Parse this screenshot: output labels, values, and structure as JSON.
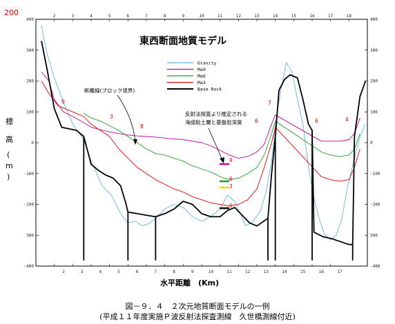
{
  "chart_data": {
    "type": "line",
    "title": "東西断面地質モデル",
    "xlabel": "水平距離　(Km)",
    "ylabel_chars": [
      "標",
      "高",
      "(",
      "m",
      ")"
    ],
    "xlim": [
      0,
      18
    ],
    "ylim": [
      -400,
      400
    ],
    "x_ticks_bottom": [
      "2",
      "3",
      "4",
      "5",
      "6",
      "7",
      "8",
      "9",
      "10",
      "11",
      "12",
      "13",
      "14",
      "15",
      "16",
      "17"
    ],
    "x_ticks_top": [
      "2",
      "3",
      "4",
      "5",
      "6",
      "7",
      "8",
      "9",
      "10",
      "11",
      "12",
      "13",
      "14",
      "15",
      "16",
      "17",
      "18"
    ],
    "y_ticks_left": [
      "400",
      "300",
      "200",
      "100",
      "0",
      "-100",
      "-200",
      "300",
      "-400"
    ],
    "y_ticks_right": [
      "400",
      "300",
      "200",
      "100",
      "0",
      "-100",
      "-200",
      "300",
      "-400"
    ],
    "top_label_red": "200",
    "legend": [
      {
        "name": "Gravity",
        "color": "#5fb8d8"
      },
      {
        "name": "Ma9",
        "color": "#c000a0"
      },
      {
        "name": "Ma6",
        "color": "#20a020"
      },
      {
        "name": "Ma3",
        "color": "#e00000"
      },
      {
        "name": "Base Rock",
        "color": "#000000"
      }
    ],
    "annotations": {
      "fault": "断層線(ブロック境界)",
      "reflection_line1": "反射法探査より推定される",
      "reflection_line2": "海成粘土層と基盤岩深度"
    },
    "block_labels": [
      "0",
      "3",
      "8",
      "7",
      "6",
      "6",
      "4"
    ],
    "layer_labels": [
      "9",
      "6",
      "3",
      "0"
    ],
    "series": [
      {
        "name": "Gravity",
        "points": [
          [
            0.3,
            380
          ],
          [
            0.6,
            290
          ],
          [
            1.0,
            210
          ],
          [
            1.5,
            130
          ],
          [
            2.0,
            60
          ],
          [
            2.6,
            10
          ],
          [
            3.0,
            -60
          ],
          [
            3.6,
            -140
          ],
          [
            4.1,
            -170
          ],
          [
            4.6,
            -230
          ],
          [
            5.0,
            -260
          ],
          [
            5.4,
            -255
          ],
          [
            5.8,
            -270
          ],
          [
            6.2,
            -260
          ],
          [
            6.6,
            -240
          ],
          [
            7.0,
            -215
          ],
          [
            7.5,
            -200
          ],
          [
            8.0,
            -210
          ],
          [
            8.5,
            -240
          ],
          [
            9.0,
            -255
          ],
          [
            9.5,
            -240
          ],
          [
            10.0,
            -215
          ],
          [
            10.4,
            -170
          ],
          [
            10.8,
            -190
          ],
          [
            11.1,
            -230
          ],
          [
            11.4,
            -270
          ],
          [
            11.8,
            -255
          ],
          [
            12.2,
            -220
          ],
          [
            12.5,
            -160
          ],
          [
            12.8,
            -60
          ],
          [
            13.0,
            60
          ],
          [
            13.3,
            170
          ],
          [
            13.6,
            260
          ],
          [
            13.9,
            230
          ],
          [
            14.2,
            140
          ],
          [
            14.5,
            60
          ],
          [
            14.8,
            -80
          ],
          [
            15.1,
            -180
          ],
          [
            15.4,
            -250
          ],
          [
            15.7,
            -300
          ],
          [
            16.0,
            -315
          ],
          [
            16.3,
            -300
          ],
          [
            16.6,
            -250
          ],
          [
            16.9,
            -150
          ],
          [
            17.3,
            -50
          ],
          [
            17.6,
            20
          ],
          [
            17.9,
            60
          ]
        ]
      },
      {
        "name": "Ma9",
        "points": [
          [
            0.3,
            230
          ],
          [
            0.7,
            200
          ],
          [
            1.0,
            140
          ],
          [
            1.5,
            100
          ],
          [
            2.0,
            85
          ],
          [
            2.6,
            65
          ],
          [
            3.0,
            50
          ],
          [
            3.5,
            42
          ],
          [
            4.0,
            35
          ],
          [
            4.5,
            30
          ],
          [
            5.0,
            25
          ],
          [
            5.5,
            22
          ],
          [
            6.0,
            20
          ],
          [
            6.5,
            18
          ],
          [
            7.0,
            15
          ],
          [
            7.5,
            12
          ],
          [
            8.0,
            10
          ],
          [
            8.5,
            5
          ],
          [
            9.0,
            0
          ],
          [
            9.5,
            -10
          ],
          [
            10.0,
            -25
          ],
          [
            10.5,
            -40
          ],
          [
            11.0,
            -50
          ],
          [
            11.5,
            -45
          ],
          [
            12.0,
            -30
          ],
          [
            12.4,
            -5
          ],
          [
            12.8,
            60
          ],
          [
            13.0,
            90
          ],
          [
            15.5,
            5
          ],
          [
            16.0,
            5
          ],
          [
            16.5,
            5
          ],
          [
            17.0,
            10
          ],
          [
            17.3,
            30
          ],
          [
            17.6,
            80
          ]
        ]
      },
      {
        "name": "Ma6",
        "points": [
          [
            2.6,
            95
          ],
          [
            3.0,
            80
          ],
          [
            3.5,
            70
          ],
          [
            4.0,
            55
          ],
          [
            4.5,
            40
          ],
          [
            5.0,
            20
          ],
          [
            5.5,
            0
          ],
          [
            6.0,
            -20
          ],
          [
            6.5,
            -35
          ],
          [
            7.0,
            -40
          ],
          [
            7.5,
            -50
          ],
          [
            8.0,
            -60
          ],
          [
            8.5,
            -75
          ],
          [
            9.0,
            -85
          ],
          [
            9.5,
            -95
          ],
          [
            10.0,
            -110
          ],
          [
            10.5,
            -120
          ],
          [
            11.0,
            -115
          ],
          [
            11.5,
            -100
          ],
          [
            12.0,
            -80
          ],
          [
            12.4,
            -40
          ],
          [
            12.8,
            30
          ],
          [
            13.0,
            70
          ],
          [
            15.5,
            -30
          ],
          [
            16.0,
            -40
          ],
          [
            16.5,
            -45
          ],
          [
            17.0,
            -40
          ],
          [
            17.3,
            -20
          ],
          [
            17.6,
            30
          ]
        ]
      },
      {
        "name": "Ma3",
        "points": [
          [
            0.3,
            200
          ],
          [
            0.7,
            160
          ],
          [
            1.2,
            120
          ],
          [
            2.0,
            100
          ],
          [
            2.6,
            85
          ],
          [
            3.0,
            60
          ],
          [
            3.5,
            40
          ],
          [
            4.0,
            20
          ],
          [
            4.5,
            -20
          ],
          [
            5.0,
            -50
          ],
          [
            5.5,
            -80
          ],
          [
            6.0,
            -100
          ],
          [
            6.5,
            -120
          ],
          [
            7.0,
            -135
          ],
          [
            7.5,
            -150
          ],
          [
            8.0,
            -160
          ],
          [
            8.5,
            -175
          ],
          [
            9.0,
            -185
          ],
          [
            9.5,
            -195
          ],
          [
            10.0,
            -200
          ],
          [
            10.5,
            -205
          ],
          [
            11.0,
            -200
          ],
          [
            11.5,
            -185
          ],
          [
            12.0,
            -150
          ],
          [
            12.4,
            -80
          ],
          [
            12.8,
            0
          ],
          [
            13.0,
            50
          ],
          [
            15.5,
            -110
          ],
          [
            16.0,
            -120
          ],
          [
            16.5,
            -125
          ],
          [
            17.0,
            -120
          ],
          [
            17.3,
            -80
          ],
          [
            17.6,
            -20
          ]
        ]
      },
      {
        "name": "Base Rock",
        "points": [
          [
            0.3,
            330
          ],
          [
            0.6,
            240
          ],
          [
            1.0,
            110
          ],
          [
            1.4,
            50
          ],
          [
            2.2,
            40
          ],
          [
            2.6,
            20
          ],
          [
            2.6,
            -380
          ],
          [
            2.6,
            20
          ],
          [
            3.0,
            -70
          ],
          [
            3.4,
            -90
          ],
          [
            3.8,
            -105
          ],
          [
            4.2,
            -115
          ],
          [
            4.6,
            -140
          ],
          [
            4.9,
            -200
          ],
          [
            5.0,
            -225
          ],
          [
            5.0,
            -380
          ],
          [
            5.0,
            -225
          ],
          [
            5.5,
            -230
          ],
          [
            6.0,
            -235
          ],
          [
            6.5,
            -240
          ],
          [
            6.5,
            -380
          ],
          [
            6.5,
            -240
          ],
          [
            7.0,
            -230
          ],
          [
            7.5,
            -215
          ],
          [
            8.0,
            -190
          ],
          [
            8.5,
            -200
          ],
          [
            9.0,
            -230
          ],
          [
            9.5,
            -240
          ],
          [
            10.0,
            -240
          ],
          [
            10.4,
            -220
          ],
          [
            10.8,
            -210
          ],
          [
            11.2,
            -235
          ],
          [
            11.6,
            -260
          ],
          [
            12.0,
            -270
          ],
          [
            12.6,
            -245
          ],
          [
            12.6,
            -380
          ],
          [
            12.6,
            -245
          ],
          [
            12.8,
            -100
          ],
          [
            13.0,
            20
          ],
          [
            13.0,
            -380
          ],
          [
            13.0,
            20
          ],
          [
            13.2,
            170
          ],
          [
            13.5,
            205
          ],
          [
            13.8,
            220
          ],
          [
            14.2,
            210
          ],
          [
            14.5,
            140
          ],
          [
            14.8,
            60
          ],
          [
            15.0,
            40
          ],
          [
            15.0,
            -380
          ],
          [
            15.0,
            40
          ],
          [
            15.1,
            -290
          ],
          [
            15.6,
            -305
          ],
          [
            16.0,
            -310
          ],
          [
            16.5,
            -320
          ],
          [
            17.0,
            -330
          ],
          [
            17.2,
            -330
          ],
          [
            17.2,
            -380
          ],
          [
            17.2,
            -330
          ],
          [
            17.3,
            20
          ],
          [
            17.6,
            150
          ],
          [
            17.9,
            200
          ]
        ]
      }
    ]
  },
  "caption": {
    "line1": "図－９．４　２次元地質断面モデルの一例",
    "line2": "(平成１１年度実施Ｐ波反射法探査測線　久世橋測線付近)"
  }
}
